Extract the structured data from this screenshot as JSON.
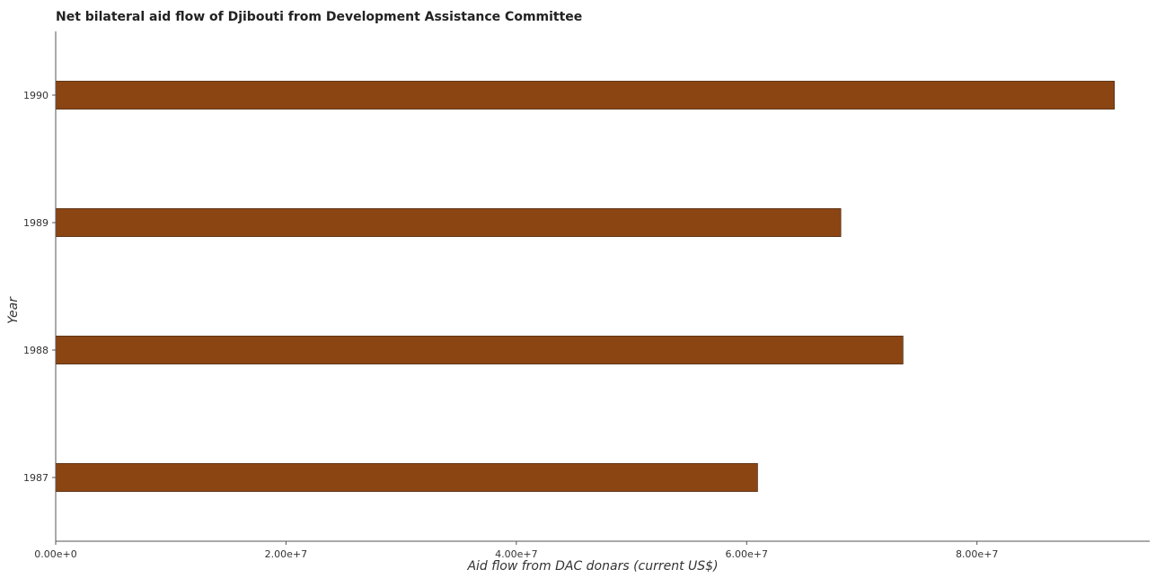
{
  "chart_data": {
    "type": "bar",
    "orientation": "horizontal",
    "title": "Net bilateral aid flow of Djibouti from Development Assistance Committee",
    "xlabel": "Aid flow from DAC donars (current US$)",
    "ylabel": "Year",
    "categories": [
      "1987",
      "1988",
      "1989",
      "1990"
    ],
    "values": [
      60950000,
      73580000,
      68180000,
      91930000
    ],
    "xlim": [
      0,
      95000000
    ],
    "xticks": [
      0,
      20000000,
      40000000,
      60000000,
      80000000
    ],
    "xtick_labels": [
      "0.00e+0",
      "2.00e+7",
      "4.00e+7",
      "6.00e+7",
      "8.00e+7"
    ],
    "bar_color": "#8B4513",
    "bar_edge_color": "#3a1a05",
    "grid": false,
    "legend": "none"
  }
}
